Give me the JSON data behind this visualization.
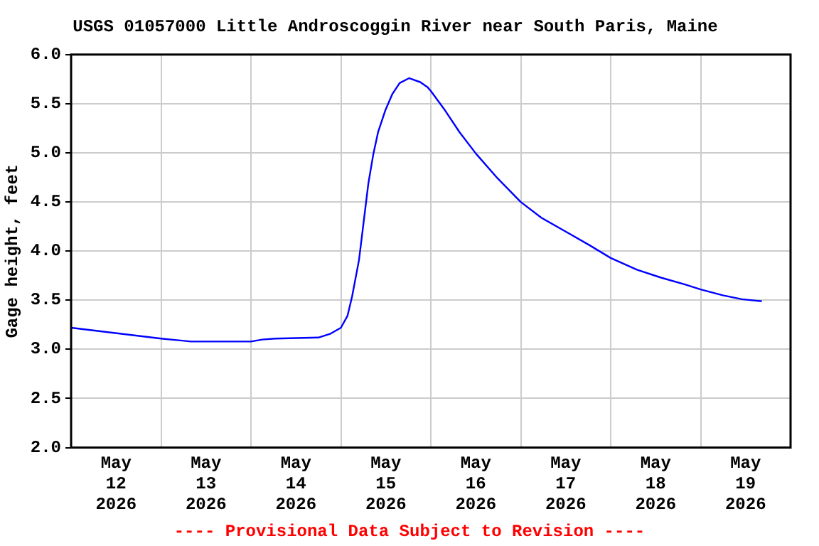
{
  "chart_data": {
    "type": "line",
    "title": "USGS 01057000 Little Androscoggin River near South Paris, Maine",
    "ylabel": "Gage height, feet",
    "annotations": [
      "---- Provisional Data Subject to Revision ----"
    ],
    "series": [
      {
        "color": "#0000ff",
        "x": [
          "2026-05-12T00:00",
          "2026-05-13T00:00",
          "2026-05-13T08:00",
          "2026-05-14T00:00",
          "2026-05-14T03:00",
          "2026-05-14T06:30",
          "2026-05-14T18:00",
          "2026-05-14T21:15",
          "2026-05-15T00:00",
          "2026-05-15T01:45",
          "2026-05-15T03:00",
          "2026-05-15T04:50",
          "2026-05-15T06:05",
          "2026-05-15T07:20",
          "2026-05-15T08:40",
          "2026-05-15T09:55",
          "2026-05-15T11:50",
          "2026-05-15T13:45",
          "2026-05-15T15:40",
          "2026-05-15T18:10",
          "2026-05-15T21:10",
          "2026-05-15T23:05",
          "2026-05-16T00:00",
          "2026-05-16T03:50",
          "2026-05-16T07:40",
          "2026-05-16T12:05",
          "2026-05-16T17:50",
          "2026-05-17T00:00",
          "2026-05-17T05:30",
          "2026-05-17T11:55",
          "2026-05-17T18:20",
          "2026-05-18T00:00",
          "2026-05-18T07:00",
          "2026-05-18T13:25",
          "2026-05-18T19:50",
          "2026-05-19T00:00",
          "2026-05-19T05:55",
          "2026-05-19T11:00",
          "2026-05-19T16:20"
        ],
        "values": [
          3.22,
          3.11,
          3.08,
          3.08,
          3.1,
          3.11,
          3.12,
          3.16,
          3.22,
          3.34,
          3.54,
          3.91,
          4.3,
          4.69,
          4.99,
          5.21,
          5.43,
          5.6,
          5.71,
          5.76,
          5.72,
          5.67,
          5.63,
          5.43,
          5.21,
          4.99,
          4.74,
          4.5,
          4.34,
          4.2,
          4.06,
          3.93,
          3.81,
          3.73,
          3.66,
          3.61,
          3.55,
          3.51,
          3.49
        ]
      }
    ],
    "xlim": [
      "2026-05-12",
      "2026-05-20"
    ],
    "xticks": [
      {
        "value": "2026-05-12T12:00",
        "label": "May\n12\n2026"
      },
      {
        "value": "2026-05-13",
        "label": null
      },
      {
        "value": "2026-05-13T12:00",
        "label": "May\n13\n2026"
      },
      {
        "value": "2026-05-14",
        "label": null
      },
      {
        "value": "2026-05-14T12:00",
        "label": "May\n14\n2026"
      },
      {
        "value": "2026-05-15",
        "label": null
      },
      {
        "value": "2026-05-15T12:00",
        "label": "May\n15\n2026"
      },
      {
        "value": "2026-05-16",
        "label": null
      },
      {
        "value": "2026-05-16T12:00",
        "label": "May\n16\n2026"
      },
      {
        "value": "2026-05-17",
        "label": null
      },
      {
        "value": "2026-05-17T12:00",
        "label": "May\n17\n2026"
      },
      {
        "value": "2026-05-18",
        "label": null
      },
      {
        "value": "2026-05-18T12:00",
        "label": "May\n18\n2026"
      },
      {
        "value": "2026-05-19",
        "label": null
      },
      {
        "value": "2026-05-19T12:00",
        "label": "May\n19\n2026"
      }
    ],
    "ylim": [
      2,
      6
    ],
    "yticks": [
      {
        "value": 2,
        "label": "2.0"
      },
      {
        "value": 2.5,
        "label": "2.5"
      },
      {
        "value": 3,
        "label": "3.0"
      },
      {
        "value": 3.5,
        "label": "3.5"
      },
      {
        "value": 4,
        "label": "4.0"
      },
      {
        "value": 4.5,
        "label": "4.5"
      },
      {
        "value": 5,
        "label": "5.0"
      },
      {
        "value": 5.5,
        "label": "5.5"
      },
      {
        "value": 6,
        "label": "6.0"
      }
    ],
    "grid": true,
    "legend": false,
    "marker": "none",
    "line_style": "solid"
  }
}
